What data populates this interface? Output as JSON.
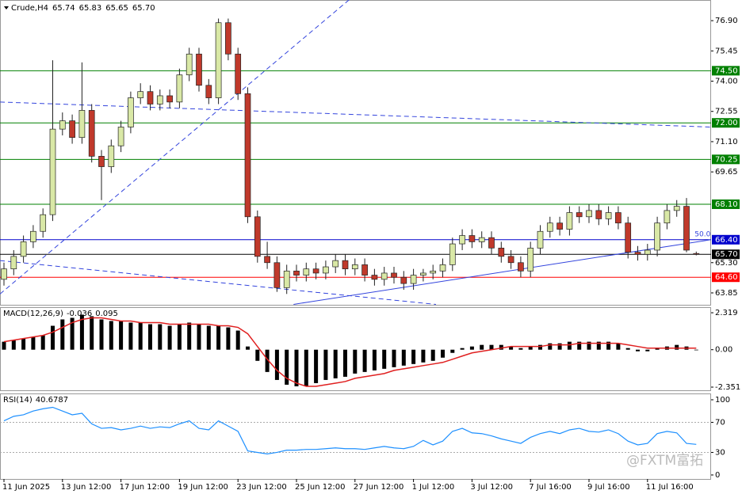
{
  "watermark": "@FXTM富拓",
  "chart_data": [
    {
      "type": "candlestick",
      "title": "Crude,H4",
      "last_labels": [
        "65.74",
        "65.83",
        "65.65",
        "65.70"
      ],
      "categories": [
        "11 Jun 2025",
        null,
        null,
        null,
        null,
        null,
        "13 Jun 12:00",
        null,
        null,
        null,
        null,
        null,
        "17 Jun 12:00",
        null,
        null,
        null,
        null,
        null,
        "19 Jun 12:00",
        null,
        null,
        null,
        null,
        null,
        "23 Jun 12:00",
        null,
        null,
        null,
        null,
        null,
        "25 Jun 12:00",
        null,
        null,
        null,
        null,
        null,
        "27 Jun 12:00",
        null,
        null,
        null,
        null,
        null,
        "1 Jul 12:00",
        null,
        null,
        null,
        null,
        null,
        "3 Jul 12:00",
        null,
        null,
        null,
        null,
        null,
        "7 Jul 16:00",
        null,
        null,
        null,
        null,
        null,
        "9 Jul 16:00",
        null,
        null,
        null,
        null,
        null,
        "11 Jul 16:00",
        null,
        null,
        null,
        null,
        null
      ],
      "open": [
        64.5,
        65.0,
        65.6,
        66.3,
        66.8,
        67.6,
        71.7,
        72.1,
        71.3,
        72.6,
        70.4,
        69.9,
        70.9,
        71.8,
        73.2,
        73.5,
        72.9,
        73.3,
        73.0,
        74.3,
        75.3,
        73.8,
        73.2,
        76.8,
        75.3,
        73.4,
        67.5,
        65.6,
        65.3,
        64.1,
        64.9,
        64.7,
        65.0,
        64.8,
        65.1,
        65.4,
        65.0,
        65.2,
        64.7,
        64.5,
        64.8,
        64.6,
        64.3,
        64.7,
        64.8,
        64.9,
        65.2,
        66.2,
        66.6,
        66.3,
        66.5,
        66.0,
        65.6,
        65.3,
        64.9,
        66.0,
        66.8,
        67.2,
        66.9,
        67.7,
        67.5,
        67.8,
        67.4,
        67.7,
        67.2,
        65.8,
        65.7,
        65.9,
        67.2,
        67.8,
        68.0,
        65.74
      ],
      "high": [
        65.3,
        65.9,
        66.6,
        67.1,
        67.9,
        75.0,
        72.5,
        72.4,
        74.9,
        72.9,
        70.7,
        71.2,
        72.1,
        73.5,
        73.9,
        73.8,
        73.6,
        73.6,
        74.6,
        75.6,
        75.6,
        74.1,
        77.0,
        77.0,
        75.6,
        73.7,
        67.8,
        66.3,
        65.6,
        65.2,
        65.2,
        65.3,
        65.3,
        65.4,
        65.7,
        65.7,
        65.5,
        65.5,
        65.0,
        65.1,
        65.1,
        64.9,
        65.0,
        65.0,
        65.2,
        65.5,
        66.5,
        66.9,
        66.9,
        66.8,
        66.8,
        66.3,
        65.9,
        65.6,
        66.3,
        67.1,
        67.5,
        67.5,
        68.0,
        68.0,
        68.1,
        68.1,
        68.0,
        68.0,
        67.5,
        66.1,
        66.2,
        67.5,
        68.1,
        68.3,
        68.4,
        65.83
      ],
      "low": [
        64.2,
        64.7,
        65.3,
        66.0,
        66.5,
        67.3,
        71.4,
        71.0,
        71.0,
        70.1,
        68.3,
        69.6,
        70.6,
        71.5,
        72.9,
        72.6,
        72.6,
        72.7,
        72.7,
        74.0,
        73.5,
        72.9,
        72.9,
        75.0,
        73.1,
        67.2,
        65.3,
        65.0,
        63.9,
        63.8,
        64.4,
        64.4,
        64.5,
        64.5,
        64.8,
        64.7,
        64.7,
        64.4,
        64.2,
        64.2,
        64.3,
        64.0,
        64.0,
        64.4,
        64.5,
        64.6,
        64.9,
        65.9,
        66.0,
        66.0,
        65.7,
        65.3,
        65.0,
        64.6,
        64.6,
        65.7,
        66.5,
        66.6,
        66.6,
        67.2,
        67.2,
        67.1,
        67.1,
        66.9,
        65.5,
        65.4,
        65.4,
        65.6,
        66.9,
        67.5,
        65.8,
        65.65
      ],
      "close": [
        65.0,
        65.6,
        66.3,
        66.8,
        67.6,
        71.7,
        72.1,
        71.3,
        72.6,
        70.4,
        69.9,
        70.9,
        71.8,
        73.2,
        73.5,
        72.9,
        73.3,
        73.0,
        74.3,
        75.3,
        73.8,
        73.2,
        76.8,
        75.3,
        73.4,
        67.5,
        65.6,
        65.3,
        64.1,
        64.9,
        64.7,
        65.0,
        64.8,
        65.1,
        65.4,
        65.0,
        65.2,
        64.7,
        64.5,
        64.8,
        64.6,
        64.3,
        64.7,
        64.8,
        64.9,
        65.2,
        66.2,
        66.6,
        66.3,
        66.5,
        66.0,
        65.6,
        65.3,
        64.9,
        66.0,
        66.8,
        67.2,
        66.9,
        67.7,
        67.5,
        67.8,
        67.4,
        67.7,
        67.2,
        65.8,
        65.7,
        65.9,
        67.2,
        67.8,
        68.0,
        65.9,
        65.7
      ],
      "up_color": "#d9e8a6",
      "down_color": "#c0392b",
      "ylim": [
        63.28,
        77.89
      ],
      "yticks": [
        {
          "value": 76.9,
          "label": "76.90"
        },
        75.45,
        {
          "value": 74.0,
          "label": "74.00"
        },
        72.55,
        {
          "value": 71.1,
          "label": "71.10"
        },
        69.65,
        {
          "value": 65.3,
          "label": "65.30"
        },
        63.85
      ],
      "levels": [
        {
          "value": 74.5,
          "label": "74.50",
          "color": "#008000"
        },
        {
          "value": 72.0,
          "label": "72.00",
          "color": "#008000"
        },
        {
          "value": 70.25,
          "label": "70.25",
          "color": "#008000"
        },
        {
          "value": 68.1,
          "label": "68.10",
          "color": "#008000"
        },
        {
          "value": 66.4,
          "label": "66.40",
          "color": "#0000cd"
        },
        {
          "value": 65.7,
          "label": "65.70",
          "color": "#000000"
        },
        {
          "value": 64.6,
          "label": "64.60",
          "color": "#ff0000"
        }
      ],
      "trendlines": [
        {
          "start": [
            -0.4,
            63.8
          ],
          "end": [
            35.4,
            77.9
          ],
          "color": "#3344dd",
          "dashed": true
        },
        {
          "start": [
            -0.4,
            73.0
          ],
          "end": [
            72.5,
            71.8
          ],
          "color": "#3344dd",
          "dashed": true
        },
        {
          "start": [
            -0.4,
            65.4
          ],
          "end": [
            44.3,
            63.3
          ],
          "color": "#3344dd",
          "dashed": true
        },
        {
          "start": [
            29.7,
            63.3
          ],
          "end": [
            72.5,
            66.4
          ],
          "color": "#3344dd",
          "dashed": false
        }
      ],
      "annotation": "50.0"
    },
    {
      "type": "macd",
      "title": "MACD(12,26,9)",
      "series": [
        {
          "name": "MACD",
          "color": "#000000",
          "values": [
            0.5,
            0.6,
            0.7,
            0.8,
            0.9,
            1.5,
            1.9,
            2.0,
            2.2,
            2.1,
            1.9,
            1.8,
            1.8,
            1.7,
            1.7,
            1.6,
            1.6,
            1.5,
            1.6,
            1.7,
            1.6,
            1.5,
            1.5,
            1.4,
            1.2,
            0.2,
            -0.7,
            -1.4,
            -1.9,
            -2.2,
            -2.3,
            -2.3,
            -2.1,
            -1.9,
            -1.8,
            -1.7,
            -1.5,
            -1.4,
            -1.3,
            -1.2,
            -1.1,
            -1.0,
            -0.9,
            -0.8,
            -0.7,
            -0.5,
            -0.2,
            0.1,
            0.2,
            0.3,
            0.3,
            0.3,
            0.2,
            0.1,
            0.2,
            0.3,
            0.4,
            0.4,
            0.5,
            0.5,
            0.5,
            0.5,
            0.5,
            0.4,
            0.1,
            -0.1,
            -0.1,
            0.1,
            0.2,
            0.3,
            0.2,
            -0.036
          ]
        },
        {
          "name": "Signal",
          "color": "#e02020",
          "values": [
            0.5,
            0.6,
            0.7,
            0.8,
            0.9,
            1.1,
            1.4,
            1.7,
            1.9,
            2.0,
            2.0,
            1.9,
            1.8,
            1.8,
            1.7,
            1.7,
            1.7,
            1.6,
            1.6,
            1.6,
            1.6,
            1.6,
            1.5,
            1.5,
            1.4,
            1.0,
            0.2,
            -0.6,
            -1.3,
            -1.8,
            -2.1,
            -2.3,
            -2.3,
            -2.2,
            -2.1,
            -2.0,
            -1.8,
            -1.7,
            -1.6,
            -1.5,
            -1.3,
            -1.2,
            -1.1,
            -1.0,
            -0.9,
            -0.8,
            -0.6,
            -0.4,
            -0.2,
            -0.1,
            0.0,
            0.1,
            0.2,
            0.2,
            0.2,
            0.2,
            0.3,
            0.3,
            0.3,
            0.4,
            0.4,
            0.4,
            0.4,
            0.4,
            0.3,
            0.2,
            0.1,
            0.1,
            0.1,
            0.1,
            0.1,
            0.095
          ]
        }
      ],
      "ylim": [
        -2.55,
        2.67
      ],
      "yticks": [
        2.319,
        {
          "value": 0,
          "label": "0.00"
        },
        -2.351
      ]
    },
    {
      "type": "line",
      "title": "RSI(14)",
      "series": [
        {
          "name": "RSI",
          "color": "#1e90ff",
          "values": [
            72,
            78,
            80,
            85,
            88,
            90,
            85,
            80,
            82,
            68,
            62,
            63,
            60,
            62,
            65,
            62,
            64,
            63,
            68,
            72,
            62,
            60,
            72,
            65,
            58,
            32,
            30,
            28,
            30,
            33,
            33,
            34,
            34,
            35,
            36,
            35,
            35,
            34,
            36,
            38,
            36,
            35,
            38,
            46,
            40,
            45,
            58,
            62,
            56,
            55,
            52,
            48,
            45,
            42,
            50,
            55,
            58,
            55,
            60,
            62,
            58,
            57,
            60,
            55,
            45,
            40,
            42,
            55,
            58,
            56,
            42,
            40.6787
          ]
        }
      ],
      "ylim": [
        -5.3,
        108.4
      ],
      "yticks": [
        100,
        70,
        30,
        0
      ],
      "levels": [
        70,
        30
      ]
    }
  ]
}
